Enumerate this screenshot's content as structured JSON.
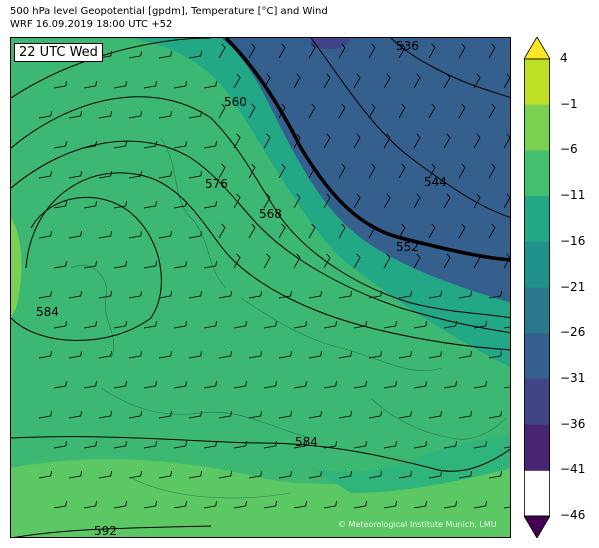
{
  "header": {
    "title": "500 hPa level Geopotential [gpdm], Temperature [°C] and Wind",
    "subtitle": "WRF 16.09.2019 18:00 UTC +52"
  },
  "map": {
    "time_label": "22 UTC Wed",
    "copyright": "© Meteorological Institute Munich, LMU",
    "contour_labels": [
      "536",
      "544",
      "552",
      "560",
      "568",
      "576",
      "584",
      "584",
      "592"
    ]
  },
  "colorbar": {
    "ticks": [
      "4",
      "−1",
      "−6",
      "−11",
      "−16",
      "−21",
      "−26",
      "−31",
      "−36",
      "−41",
      "−46"
    ],
    "colors": [
      "#fde725",
      "#bddf26",
      "#7ad151",
      "#44bf70",
      "#22a884",
      "#21918c",
      "#2a788e",
      "#355f8d",
      "#414487",
      "#482475",
      "#440154"
    ]
  }
}
